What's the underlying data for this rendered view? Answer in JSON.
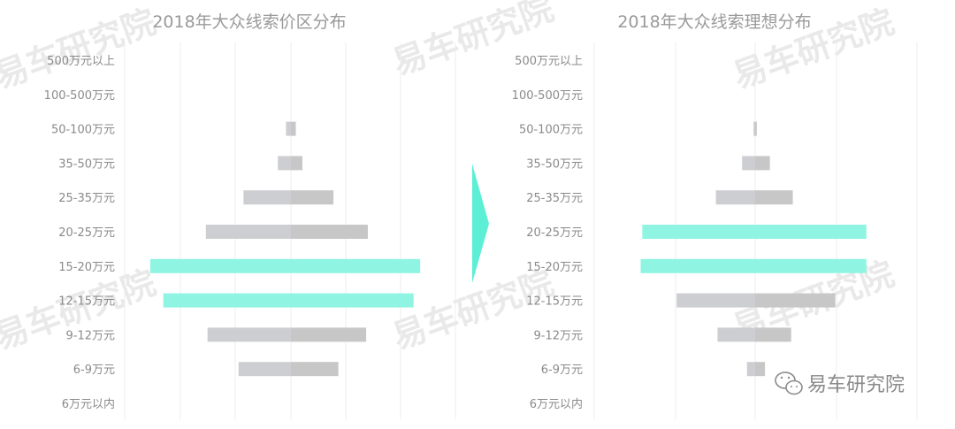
{
  "colors": {
    "highlight": "#8ff5e2",
    "bar_left": "#ccced1",
    "bar_right": "#c7c7c7",
    "grid": "#ececec",
    "arrow": "#5cefd6"
  },
  "brand": {
    "watermark": "易车研究院",
    "badge_text": "易车研究院",
    "badge_icon": "wechat-icon"
  },
  "chart_data": [
    {
      "type": "bar",
      "title": "2018年大众线索价区分布",
      "categories": [
        "500万元以上",
        "100-500万元",
        "50-100万元",
        "35-50万元",
        "25-35万元",
        "20-25万元",
        "15-20万元",
        "12-15万元",
        "9-12万元",
        "6-9万元",
        "6万元以内"
      ],
      "series": [
        {
          "values": [
            0,
            0,
            0.3,
            0.8,
            2.9,
            5.2,
            8.6,
            7.8,
            5.1,
            3.2,
            0
          ]
        },
        {
          "values": [
            0,
            0,
            0.3,
            0.7,
            2.6,
            4.7,
            7.9,
            7.5,
            4.6,
            2.9,
            0
          ]
        }
      ],
      "highlight": [
        "15-20万元",
        "12-15万元"
      ],
      "grid": true
    },
    {
      "type": "bar",
      "title": "2018年大众线索理想分布",
      "categories": [
        "500万元以上",
        "100-500万元",
        "50-100万元",
        "35-50万元",
        "25-35万元",
        "20-25万元",
        "15-20万元",
        "12-15万元",
        "9-12万元",
        "6-9万元",
        "6万元以内"
      ],
      "series": [
        {
          "values": [
            0,
            0,
            0.1,
            0.8,
            2.4,
            6.9,
            7.0,
            4.8,
            2.3,
            0.5,
            0
          ]
        },
        {
          "values": [
            0,
            0,
            0.1,
            0.9,
            2.3,
            6.8,
            6.8,
            4.9,
            2.2,
            0.6,
            0
          ]
        }
      ],
      "highlight": [
        "20-25万元",
        "15-20万元"
      ],
      "grid": true
    }
  ]
}
